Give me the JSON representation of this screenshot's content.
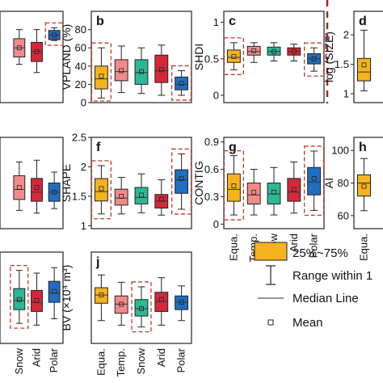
{
  "colors": {
    "Equa.": "#f5b31d",
    "Temp.": "#f38a8a",
    "Snow": "#2bb895",
    "Arid": "#d62839",
    "Polar": "#1f6fc0",
    "highlight": "#c0392b",
    "separator": "#9b2d20"
  },
  "legend": {
    "box_label": "25%~75%",
    "whisker_label": "Range within 1",
    "median_label": "Median Line",
    "mean_label": "Mean"
  },
  "chart_data": [
    {
      "id": "a",
      "panel_letter": "",
      "type": "box",
      "ylabel": "",
      "ylim": [
        0,
        1
      ],
      "yticks": [],
      "xticklabels": [],
      "highlight": [
        false,
        false,
        true
      ],
      "boxes": [
        {
          "cat": "Temp.",
          "whisk_lo": 0.42,
          "q1": 0.5,
          "median": 0.6,
          "q3": 0.7,
          "whisk_hi": 0.8,
          "mean": 0.6
        },
        {
          "cat": "Arid",
          "whisk_lo": 0.33,
          "q1": 0.45,
          "median": 0.56,
          "q3": 0.66,
          "whisk_hi": 0.8,
          "mean": 0.56
        },
        {
          "cat": "Polar",
          "whisk_lo": 0.68,
          "q1": 0.69,
          "median": 0.74,
          "q3": 0.79,
          "whisk_hi": 0.82,
          "mean": 0.74
        }
      ]
    },
    {
      "id": "b",
      "panel_letter": "b",
      "type": "box",
      "ylabel": "VPLAND (%)",
      "ylim": [
        0,
        100
      ],
      "yticks": [
        0,
        20,
        40,
        60,
        80
      ],
      "xticklabels": [],
      "highlight": [
        true,
        false,
        false,
        false,
        true
      ],
      "boxes": [
        {
          "cat": "Equa.",
          "whisk_lo": 5,
          "q1": 15,
          "median": 26,
          "q3": 40,
          "whisk_hi": 60,
          "mean": 29
        },
        {
          "cat": "Temp.",
          "whisk_lo": 11,
          "q1": 24,
          "median": 34,
          "q3": 47,
          "whisk_hi": 62,
          "mean": 35
        },
        {
          "cat": "Snow",
          "whisk_lo": 10,
          "q1": 20,
          "median": 33,
          "q3": 47,
          "whisk_hi": 60,
          "mean": 34
        },
        {
          "cat": "Arid",
          "whisk_lo": 8,
          "q1": 22,
          "median": 35,
          "q3": 52,
          "whisk_hi": 63,
          "mean": 36
        },
        {
          "cat": "Polar",
          "whisk_lo": 8,
          "q1": 14,
          "median": 20,
          "q3": 28,
          "whisk_hi": 35,
          "mean": 21
        }
      ]
    },
    {
      "id": "c",
      "panel_letter": "c",
      "type": "box",
      "ylabel": "SHDI",
      "ylim": [
        -0.1,
        1.15
      ],
      "yticks": [
        0.0,
        0.5,
        1.0
      ],
      "xticklabels": [],
      "highlight": [
        true,
        false,
        false,
        false,
        true
      ],
      "boxes": [
        {
          "cat": "Equa.",
          "whisk_lo": 0.35,
          "q1": 0.45,
          "median": 0.52,
          "q3": 0.62,
          "whisk_hi": 0.72,
          "mean": 0.53
        },
        {
          "cat": "Temp.",
          "whisk_lo": 0.45,
          "q1": 0.55,
          "median": 0.6,
          "q3": 0.67,
          "whisk_hi": 0.72,
          "mean": 0.61
        },
        {
          "cat": "Snow",
          "whisk_lo": 0.47,
          "q1": 0.55,
          "median": 0.6,
          "q3": 0.66,
          "whisk_hi": 0.72,
          "mean": 0.6
        },
        {
          "cat": "Arid",
          "whisk_lo": 0.47,
          "q1": 0.55,
          "median": 0.6,
          "q3": 0.65,
          "whisk_hi": 0.7,
          "mean": 0.6
        },
        {
          "cat": "Polar",
          "whisk_lo": 0.33,
          "q1": 0.43,
          "median": 0.5,
          "q3": 0.57,
          "whisk_hi": 0.65,
          "mean": 0.5
        }
      ]
    },
    {
      "id": "d",
      "panel_letter": "d",
      "type": "box",
      "ylabel": "log (SIZE)",
      "ylim": [
        0.85,
        2.4
      ],
      "yticks": [
        1.0,
        1.5,
        2.0
      ],
      "xticklabels": [],
      "highlight": [
        false
      ],
      "boxes": [
        {
          "cat": "Equa.",
          "whisk_lo": 1.05,
          "q1": 1.22,
          "median": 1.37,
          "q3": 1.6,
          "whisk_hi": 2.08,
          "mean": 1.49
        }
      ]
    },
    {
      "id": "e",
      "panel_letter": "",
      "type": "box",
      "ylabel": "",
      "ylim": [
        0,
        1
      ],
      "yticks": [],
      "xticklabels": [],
      "highlight": [
        false,
        false,
        false
      ],
      "boxes": [
        {
          "cat": "Temp.",
          "whisk_lo": 0.2,
          "q1": 0.32,
          "median": 0.43,
          "q3": 0.58,
          "whisk_hi": 0.73,
          "mean": 0.45
        },
        {
          "cat": "Arid",
          "whisk_lo": 0.17,
          "q1": 0.3,
          "median": 0.4,
          "q3": 0.55,
          "whisk_hi": 0.75,
          "mean": 0.45
        },
        {
          "cat": "Polar",
          "whisk_lo": 0.22,
          "q1": 0.3,
          "median": 0.4,
          "q3": 0.5,
          "whisk_hi": 0.62,
          "mean": 0.4
        }
      ]
    },
    {
      "id": "f",
      "panel_letter": "f",
      "type": "box",
      "ylabel": "SHAPE",
      "ylim": [
        0.95,
        2.5
      ],
      "yticks": [
        1,
        1.5,
        2,
        2.5
      ],
      "xticklabels": [],
      "highlight": [
        true,
        false,
        false,
        false,
        true
      ],
      "boxes": [
        {
          "cat": "Equa.",
          "whisk_lo": 1.2,
          "q1": 1.42,
          "median": 1.58,
          "q3": 1.8,
          "whisk_hi": 2.02,
          "mean": 1.63
        },
        {
          "cat": "Temp.",
          "whisk_lo": 1.2,
          "q1": 1.35,
          "median": 1.47,
          "q3": 1.62,
          "whisk_hi": 1.82,
          "mean": 1.5
        },
        {
          "cat": "Snow",
          "whisk_lo": 1.22,
          "q1": 1.37,
          "median": 1.48,
          "q3": 1.65,
          "whisk_hi": 1.88,
          "mean": 1.52
        },
        {
          "cat": "Arid",
          "whisk_lo": 1.18,
          "q1": 1.3,
          "median": 1.42,
          "q3": 1.53,
          "whisk_hi": 1.78,
          "mean": 1.45
        },
        {
          "cat": "Polar",
          "whisk_lo": 1.28,
          "q1": 1.55,
          "median": 1.78,
          "q3": 1.95,
          "whisk_hi": 2.22,
          "mean": 1.8
        }
      ]
    },
    {
      "id": "g",
      "panel_letter": "g",
      "type": "box",
      "ylabel": "CONTIG",
      "ylim": [
        -0.05,
        0.95
      ],
      "yticks": [
        0.0,
        0.3,
        0.6,
        0.9
      ],
      "xticklabels": [
        "Equa.",
        "Temp.",
        "Snow",
        "Arid",
        "Polar"
      ],
      "highlight": [
        true,
        false,
        false,
        false,
        true
      ],
      "boxes": [
        {
          "cat": "Equa.",
          "whisk_lo": 0.1,
          "q1": 0.25,
          "median": 0.38,
          "q3": 0.55,
          "whisk_hi": 0.75,
          "mean": 0.42
        },
        {
          "cat": "Temp.",
          "whisk_lo": 0.1,
          "q1": 0.22,
          "median": 0.32,
          "q3": 0.45,
          "whisk_hi": 0.6,
          "mean": 0.35
        },
        {
          "cat": "Snow",
          "whisk_lo": 0.1,
          "q1": 0.22,
          "median": 0.33,
          "q3": 0.45,
          "whisk_hi": 0.62,
          "mean": 0.35
        },
        {
          "cat": "Arid",
          "whisk_lo": 0.12,
          "q1": 0.25,
          "median": 0.35,
          "q3": 0.5,
          "whisk_hi": 0.68,
          "mean": 0.38
        },
        {
          "cat": "Polar",
          "whisk_lo": 0.15,
          "q1": 0.32,
          "median": 0.46,
          "q3": 0.62,
          "whisk_hi": 0.8,
          "mean": 0.5
        }
      ]
    },
    {
      "id": "h",
      "panel_letter": "h",
      "type": "box",
      "ylabel": "AI",
      "ylim": [
        52,
        108
      ],
      "yticks": [
        60,
        80,
        100
      ],
      "xticklabels": [
        "Equa."
      ],
      "highlight": [
        false
      ],
      "boxes": [
        {
          "cat": "Equa.",
          "whisk_lo": 63,
          "q1": 72,
          "median": 80,
          "q3": 85,
          "whisk_hi": 95,
          "mean": 78
        }
      ]
    },
    {
      "id": "i",
      "panel_letter": "",
      "type": "box",
      "ylabel": "",
      "ylim": [
        0,
        1
      ],
      "yticks": [],
      "xticklabels": [
        "Snow",
        "Arid",
        "Polar"
      ],
      "highlight": [
        true,
        false,
        false
      ],
      "boxes": [
        {
          "cat": "Snow",
          "whisk_lo": 0.22,
          "q1": 0.37,
          "median": 0.47,
          "q3": 0.6,
          "whisk_hi": 0.8,
          "mean": 0.48
        },
        {
          "cat": "Arid",
          "whisk_lo": 0.2,
          "q1": 0.35,
          "median": 0.45,
          "q3": 0.58,
          "whisk_hi": 0.77,
          "mean": 0.47
        },
        {
          "cat": "Polar",
          "whisk_lo": 0.27,
          "q1": 0.45,
          "median": 0.55,
          "q3": 0.68,
          "whisk_hi": 0.83,
          "mean": 0.57
        }
      ]
    },
    {
      "id": "j",
      "panel_letter": "j",
      "type": "box",
      "ylabel": "BV (×10⁴ m³)",
      "ylim": [
        0,
        1
      ],
      "yticks": [],
      "xticklabels": [
        "Equa.",
        "Temp.",
        "Snow",
        "Arid",
        "Polar"
      ],
      "highlight": [
        false,
        false,
        true,
        false,
        false
      ],
      "boxes": [
        {
          "cat": "Equa.",
          "whisk_lo": 0.25,
          "q1": 0.44,
          "median": 0.53,
          "q3": 0.61,
          "whisk_hi": 0.75,
          "mean": 0.53
        },
        {
          "cat": "Temp.",
          "whisk_lo": 0.2,
          "q1": 0.33,
          "median": 0.43,
          "q3": 0.52,
          "whisk_hi": 0.67,
          "mean": 0.43
        },
        {
          "cat": "Snow",
          "whisk_lo": 0.18,
          "q1": 0.3,
          "median": 0.38,
          "q3": 0.48,
          "whisk_hi": 0.62,
          "mean": 0.38
        },
        {
          "cat": "Arid",
          "whisk_lo": 0.2,
          "q1": 0.35,
          "median": 0.46,
          "q3": 0.56,
          "whisk_hi": 0.72,
          "mean": 0.48
        },
        {
          "cat": "Polar",
          "whisk_lo": 0.25,
          "q1": 0.37,
          "median": 0.45,
          "q3": 0.52,
          "whisk_hi": 0.63,
          "mean": 0.45
        }
      ]
    }
  ]
}
